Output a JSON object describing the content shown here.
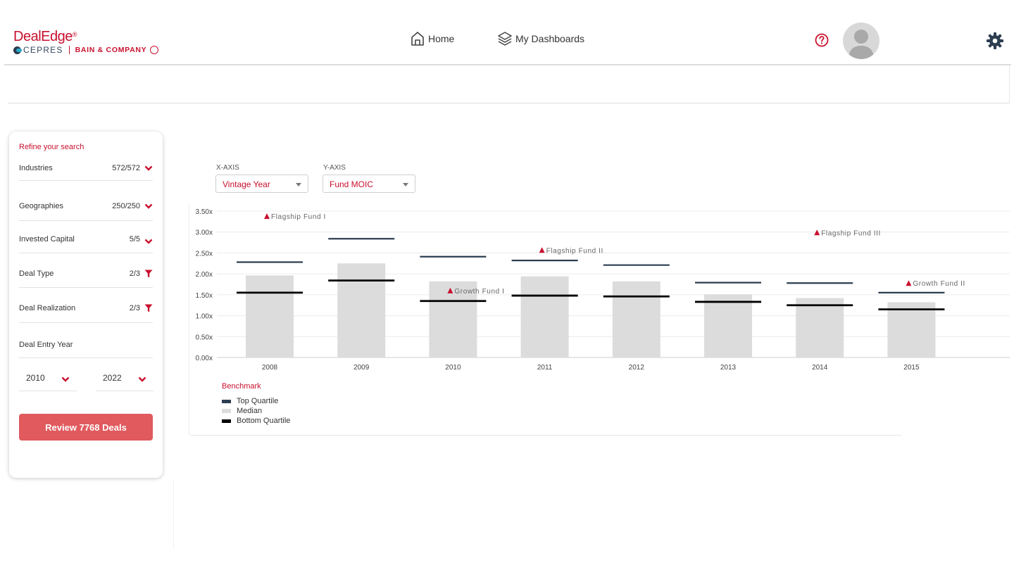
{
  "header": {
    "logo_main": "DealEdge",
    "logo_reg": "®",
    "logo_cepres": "CEPRES",
    "logo_bain": "BAIN & COMPANY",
    "nav": [
      {
        "label": "Home",
        "icon": "home-icon"
      },
      {
        "label": "My Dashboards",
        "icon": "layers-icon"
      }
    ],
    "help_icon": "help-icon",
    "settings_icon": "gear-icon",
    "accent_color": "#c8102e"
  },
  "sidebar": {
    "title": "Refine your search",
    "filters": [
      {
        "label": "Industries",
        "count": "572/572",
        "icon": "chevron-down-icon"
      },
      {
        "label": "Geographies",
        "count": "250/250",
        "icon": "chevron-down-icon"
      },
      {
        "label": "Invested Capital",
        "count": "5/5",
        "icon": "chevron-down-icon"
      },
      {
        "label": "Deal Type",
        "count": "2/3",
        "icon": "filter-icon"
      },
      {
        "label": "Deal Realization",
        "count": "2/3",
        "icon": "filter-icon"
      },
      {
        "label": "Deal Entry Year",
        "count": "",
        "icon": ""
      }
    ],
    "year_from": "2010",
    "year_to": "2022",
    "review_button": "Review 7768 Deals",
    "button_color": "#e05a5e"
  },
  "controls": {
    "x_axis_label": "X-AXIS",
    "x_axis_value": "Vintage Year",
    "y_axis_label": "Y-AXIS",
    "y_axis_value": "Fund MOIC"
  },
  "chart_data": {
    "type": "bar",
    "categories": [
      "2008",
      "2009",
      "2010",
      "2011",
      "2012",
      "2013",
      "2014",
      "2015"
    ],
    "y_ticks": [
      "0.00x",
      "0.50x",
      "1.00x",
      "1.50x",
      "2.00x",
      "2.50x",
      "3.00x",
      "3.50x"
    ],
    "ylim": [
      0,
      3.5
    ],
    "grid": true,
    "series": [
      {
        "name": "Top Quartile",
        "marker": "line",
        "color": "#2c3e50",
        "values": [
          2.28,
          2.84,
          2.41,
          2.32,
          2.21,
          1.79,
          1.78,
          1.55
        ]
      },
      {
        "name": "Median",
        "marker": "bar",
        "color": "#dcdcdc",
        "values": [
          1.96,
          2.25,
          1.82,
          1.94,
          1.82,
          1.51,
          1.42,
          1.32
        ]
      },
      {
        "name": "Bottom Quartile",
        "marker": "line",
        "color": "#000000",
        "values": [
          1.55,
          1.84,
          1.35,
          1.48,
          1.46,
          1.33,
          1.25,
          1.15
        ]
      }
    ],
    "funds": [
      {
        "name": "Flagship Fund I",
        "category": "2008",
        "value": 3.38
      },
      {
        "name": "Growth Fund I",
        "category": "2010",
        "value": 1.6
      },
      {
        "name": "Flagship Fund II",
        "category": "2011",
        "value": 2.57
      },
      {
        "name": "Flagship Fund III",
        "category": "2014",
        "value": 2.99
      },
      {
        "name": "Growth Fund II",
        "category": "2015",
        "value": 1.78
      }
    ],
    "fund_marker_color": "#c8102e",
    "legend_title": "Benchmark",
    "legend_position": "bottom-left"
  }
}
